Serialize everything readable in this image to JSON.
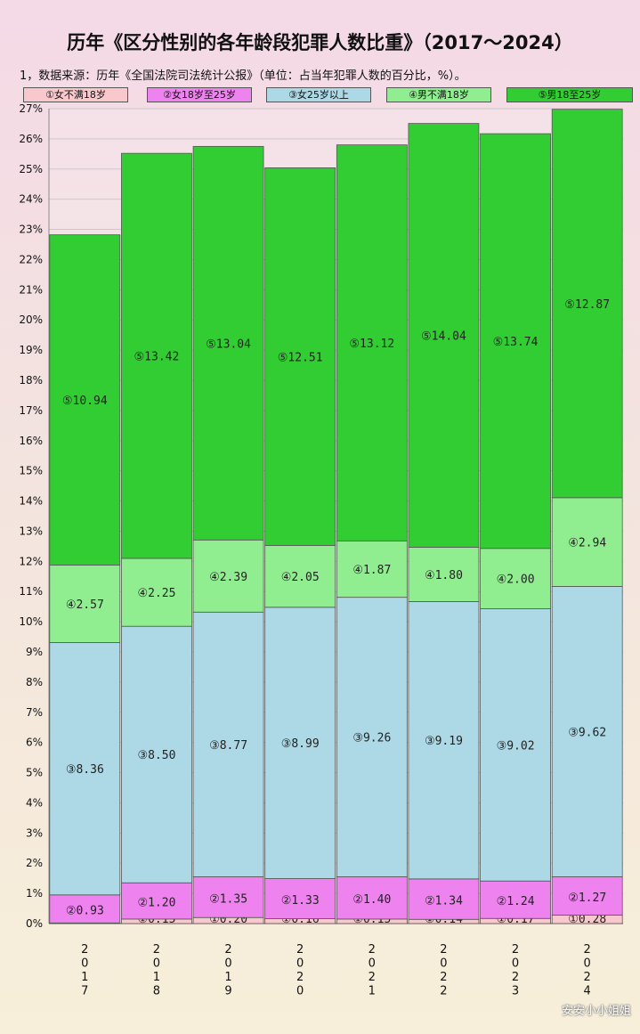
{
  "title": "历年《区分性别的各年龄段犯罪人数比重》（2017～2024）",
  "subtitle": "1，数据来源：历年《全国法院司法统计公报》（单位：占当年犯罪人数的百分比，%）。",
  "watermark": "安安小小姐姐",
  "chart_data": {
    "type": "bar",
    "stacked": true,
    "categories": [
      "2017",
      "2018",
      "2019",
      "2020",
      "2021",
      "2022",
      "2023",
      "2024"
    ],
    "series": [
      {
        "name": "①女不满18岁",
        "marker": "①",
        "color": "#f8c8cc",
        "values": [
          0.02,
          0.15,
          0.2,
          0.16,
          0.15,
          0.14,
          0.17,
          0.28
        ]
      },
      {
        "name": "②女18岁至25岁",
        "marker": "②",
        "color": "#ee82ee",
        "values": [
          0.93,
          1.2,
          1.35,
          1.33,
          1.4,
          1.34,
          1.24,
          1.27
        ]
      },
      {
        "name": "③女25岁以上",
        "marker": "③",
        "color": "#add8e6",
        "values": [
          8.36,
          8.5,
          8.77,
          8.99,
          9.26,
          9.19,
          9.02,
          9.62
        ]
      },
      {
        "name": "④男不满18岁",
        "marker": "④",
        "color": "#90ee90",
        "values": [
          2.57,
          2.25,
          2.39,
          2.05,
          1.87,
          1.8,
          2.0,
          2.94
        ]
      },
      {
        "name": "⑤男18至25岁",
        "marker": "⑤",
        "color": "#32cd32",
        "values": [
          10.94,
          13.42,
          13.04,
          12.51,
          13.12,
          14.04,
          13.74,
          12.87
        ]
      }
    ],
    "yticks": [
      "0%",
      "1%",
      "2%",
      "3%",
      "4%",
      "5%",
      "6%",
      "7%",
      "8%",
      "9%",
      "10%",
      "11%",
      "12%",
      "13%",
      "14%",
      "15%",
      "16%",
      "17%",
      "18%",
      "19%",
      "20%",
      "21%",
      "22%",
      "23%",
      "24%",
      "25%",
      "26%",
      "27%"
    ],
    "ylim": [
      0,
      27
    ],
    "grid": true,
    "legend_position": "top"
  }
}
